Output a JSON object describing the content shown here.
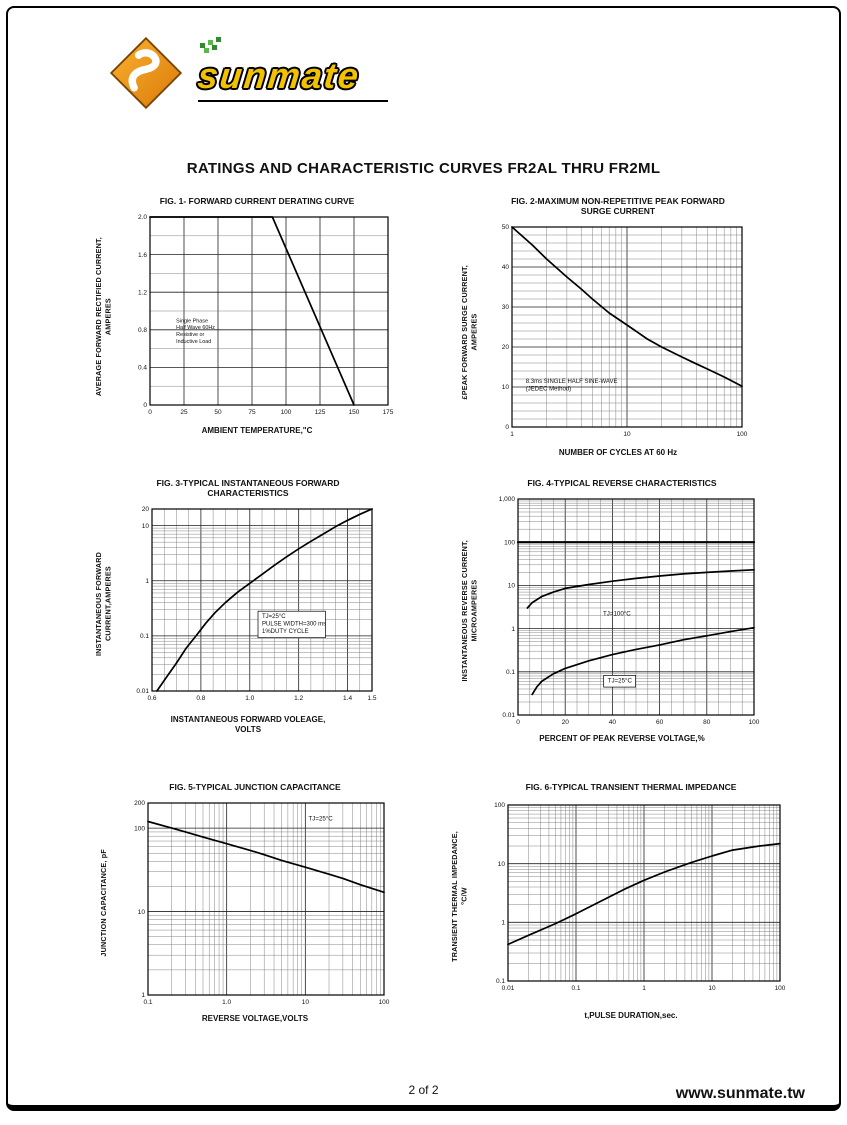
{
  "page": {
    "brand": "SUNMATE",
    "title": "RATINGS AND CHARACTERISTIC CURVES FR2AL THRU FR2ML",
    "footer_page": "2 of 2",
    "footer_site": "www.sunmate.tw"
  },
  "colors": {
    "logo_orange": "#E8891B",
    "logo_yellow": "#F2C100",
    "curve": "#000000"
  },
  "chart_data": [
    {
      "type": "line",
      "title": "FIG. 1- FORWARD CURRENT DERATING CURVE",
      "xlabel": "AMBIENT TEMPERATURE,\"C",
      "ylabel": "AVERAGE FORWARD RECTIFIED CURRENT,\nAMPERES",
      "x": {
        "scale": "linear",
        "min": 0,
        "max": 175,
        "grid_step": 25,
        "ticks": [
          [
            0,
            "0"
          ],
          [
            25,
            "25"
          ],
          [
            50,
            "50"
          ],
          [
            75,
            "75"
          ],
          [
            100,
            "100"
          ],
          [
            125,
            "125"
          ],
          [
            150,
            "150"
          ],
          [
            175,
            "175"
          ]
        ]
      },
      "y": {
        "scale": "linear",
        "min": 0,
        "max": 2,
        "grid_step": 0.2,
        "ticks": [
          [
            0,
            "0"
          ],
          [
            0.4,
            "0.4"
          ],
          [
            0.8,
            "0.8"
          ],
          [
            1.2,
            "1.2"
          ],
          [
            1.6,
            "1.6"
          ],
          [
            2,
            "2.0"
          ]
        ]
      },
      "series": [
        {
          "name": "derating-curve",
          "width": 1.7,
          "points": [
            [
              0,
              2
            ],
            [
              90,
              2
            ],
            [
              150,
              0
            ]
          ]
        }
      ],
      "annotations": [
        {
          "text": "Single Phase\nHalf Wave 60Hz\nResistive or\nInductive Load",
          "rx": 0.11,
          "ry": 0.56,
          "font": 5.4,
          "boxed": false
        }
      ]
    },
    {
      "type": "line",
      "title": "FIG. 2-MAXIMUM NON-REPETITIVE PEAK FORWARD\nSURGE CURRENT",
      "xlabel": "NUMBER OF CYCLES AT 60 Hz",
      "ylabel": "£PEAK  FORWARD SURGE CURRENT,\nAMPERES",
      "x": {
        "scale": "log",
        "min": 1,
        "max": 100,
        "ticks": [
          [
            1,
            "1"
          ],
          [
            10,
            "10"
          ],
          [
            100,
            "100"
          ]
        ]
      },
      "y": {
        "scale": "linear",
        "min": 0,
        "max": 50,
        "grid_step": 2,
        "ticks": [
          [
            0,
            "0"
          ],
          [
            10,
            "10"
          ],
          [
            20,
            "20"
          ],
          [
            30,
            "30"
          ],
          [
            40,
            "40"
          ],
          [
            50,
            "50"
          ]
        ]
      },
      "series": [
        {
          "name": "surge-current-curve",
          "width": 1.7,
          "points": [
            [
              1,
              50
            ],
            [
              1.5,
              45.5
            ],
            [
              2,
              42
            ],
            [
              3,
              37.5
            ],
            [
              4,
              34.5
            ],
            [
              5,
              32
            ],
            [
              7,
              28.5
            ],
            [
              10,
              25.5
            ],
            [
              15,
              22
            ],
            [
              20,
              20
            ],
            [
              30,
              17.5
            ],
            [
              40,
              15.8
            ],
            [
              50,
              14.5
            ],
            [
              70,
              12.5
            ],
            [
              100,
              10.2
            ]
          ]
        }
      ],
      "annotations": [
        {
          "text": "8.3ms SINGLE HALF SINE-WAVE\n(JEDEC Method)",
          "rx": 0.06,
          "ry": 0.78,
          "font": 6,
          "boxed": false
        }
      ]
    },
    {
      "type": "line",
      "title": "FIG. 3-TYPICAL INSTANTANEOUS FORWARD\nCHARACTERISTICS",
      "xlabel": "INSTANTANEOUS FORWARD VOLEAGE,\nVOLTS",
      "ylabel": "INSTANTANEOUS FORWARD\nCURRENT,AMPERES",
      "x": {
        "scale": "linear",
        "min": 0.6,
        "max": 1.5,
        "grid_step": 0.05,
        "ticks": [
          [
            0.6,
            "0.6"
          ],
          [
            0.8,
            "0.8"
          ],
          [
            1,
            "1.0"
          ],
          [
            1.2,
            "1.2"
          ],
          [
            1.4,
            "1.4"
          ],
          [
            1.5,
            "1.5"
          ]
        ]
      },
      "y": {
        "scale": "log",
        "min": 0.01,
        "max": 20,
        "ticks": [
          [
            20,
            "20"
          ],
          [
            10,
            "10"
          ],
          [
            1,
            "1"
          ],
          [
            0.1,
            "0.1"
          ],
          [
            0.01,
            "0.01"
          ]
        ]
      },
      "series": [
        {
          "name": "forward-characteristic-curve",
          "width": 1.7,
          "points": [
            [
              0.62,
              0.01
            ],
            [
              0.66,
              0.018
            ],
            [
              0.7,
              0.032
            ],
            [
              0.74,
              0.06
            ],
            [
              0.78,
              0.1
            ],
            [
              0.82,
              0.17
            ],
            [
              0.86,
              0.27
            ],
            [
              0.9,
              0.4
            ],
            [
              0.95,
              0.62
            ],
            [
              1,
              0.9
            ],
            [
              1.05,
              1.3
            ],
            [
              1.1,
              1.9
            ],
            [
              1.15,
              2.7
            ],
            [
              1.2,
              3.8
            ],
            [
              1.25,
              5.2
            ],
            [
              1.3,
              7
            ],
            [
              1.35,
              9.5
            ],
            [
              1.4,
              12.5
            ],
            [
              1.45,
              16
            ],
            [
              1.5,
              20
            ]
          ]
        }
      ],
      "annotations": [
        {
          "text": "TJ=25°C\nPULSE WIDTH=300 ms\n1%DUTY CYCLE",
          "rx": 0.5,
          "ry": 0.6,
          "font": 6,
          "boxed": true
        }
      ]
    },
    {
      "type": "line",
      "title": "FIG. 4-TYPICAL REVERSE CHARACTERISTICS",
      "xlabel": "PERCENT OF PEAK REVERSE VOLTAGE,%",
      "ylabel": "INSTANTANEOUS REVERSE CURRENT,\nMICROAMPERES",
      "x": {
        "scale": "linear",
        "min": 0,
        "max": 100,
        "grid_step": 5,
        "ticks": [
          [
            0,
            "0"
          ],
          [
            20,
            "20"
          ],
          [
            40,
            "40"
          ],
          [
            60,
            "60"
          ],
          [
            80,
            "80"
          ],
          [
            100,
            "100"
          ]
        ]
      },
      "y": {
        "scale": "log",
        "min": 0.01,
        "max": 1000,
        "ticks": [
          [
            1000,
            "1,000"
          ],
          [
            100,
            "100"
          ],
          [
            10,
            "10"
          ],
          [
            1,
            "1"
          ],
          [
            0.1,
            "0.1"
          ],
          [
            0.01,
            "0.01"
          ]
        ]
      },
      "series": [
        {
          "name": "limit-line",
          "width": 2.2,
          "points": [
            [
              0,
              100
            ],
            [
              100,
              100
            ]
          ]
        },
        {
          "name": "tj-100c-curve",
          "width": 1.7,
          "points": [
            [
              4,
              3
            ],
            [
              6,
              4
            ],
            [
              10,
              5.5
            ],
            [
              15,
              7
            ],
            [
              20,
              8.5
            ],
            [
              30,
              10.5
            ],
            [
              40,
              12.5
            ],
            [
              50,
              14.5
            ],
            [
              60,
              16.5
            ],
            [
              70,
              18.5
            ],
            [
              80,
              20
            ],
            [
              90,
              21.5
            ],
            [
              100,
              23
            ]
          ]
        },
        {
          "name": "tj-25c-curve",
          "width": 1.7,
          "points": [
            [
              6,
              0.03
            ],
            [
              8,
              0.045
            ],
            [
              10,
              0.06
            ],
            [
              15,
              0.09
            ],
            [
              20,
              0.12
            ],
            [
              30,
              0.18
            ],
            [
              40,
              0.25
            ],
            [
              50,
              0.33
            ],
            [
              60,
              0.42
            ],
            [
              70,
              0.55
            ],
            [
              80,
              0.68
            ],
            [
              90,
              0.85
            ],
            [
              100,
              1.05
            ]
          ]
        }
      ],
      "annotations": [
        {
          "text": "TJ=100°C",
          "rx": 0.36,
          "ry": 0.54,
          "font": 6.2,
          "boxed": false
        },
        {
          "text": "TJ=25°C",
          "rx": 0.38,
          "ry": 0.85,
          "font": 6.2,
          "boxed": true
        }
      ]
    },
    {
      "type": "line",
      "title": "FIG. 5-TYPICAL JUNCTION CAPACITANCE",
      "xlabel": "REVERSE VOLTAGE,VOLTS",
      "ylabel": "JUNCTION CAPACITANCE, pF",
      "x": {
        "scale": "log",
        "min": 0.1,
        "max": 100,
        "ticks": [
          [
            0.1,
            "0.1"
          ],
          [
            1,
            "1.0"
          ],
          [
            10,
            "10"
          ],
          [
            100,
            "100"
          ]
        ]
      },
      "y": {
        "scale": "log",
        "min": 1,
        "max": 200,
        "ticks": [
          [
            200,
            "200"
          ],
          [
            100,
            "100"
          ],
          [
            10,
            "10"
          ],
          [
            1,
            "1"
          ]
        ]
      },
      "series": [
        {
          "name": "junction-capacitance-curve",
          "width": 1.7,
          "points": [
            [
              0.1,
              120
            ],
            [
              0.2,
              100
            ],
            [
              0.3,
              90
            ],
            [
              0.5,
              78
            ],
            [
              1,
              65
            ],
            [
              2,
              54
            ],
            [
              3,
              48
            ],
            [
              5,
              41
            ],
            [
              10,
              34
            ],
            [
              20,
              28
            ],
            [
              30,
              25
            ],
            [
              50,
              21
            ],
            [
              100,
              17
            ]
          ]
        }
      ],
      "annotations": [
        {
          "text": "TJ=25°C",
          "rx": 0.68,
          "ry": 0.09,
          "font": 6.2,
          "boxed": false
        }
      ]
    },
    {
      "type": "line",
      "title": "FIG. 6-TYPICAL TRANSIENT THERMAL IMPEDANCE",
      "xlabel": "t,PULSE DURATION,sec.",
      "ylabel": "TRANSIENT THERMAL IMPEDANCE,\n°C/W",
      "x": {
        "scale": "log",
        "min": 0.01,
        "max": 100,
        "ticks": [
          [
            0.01,
            "0.01"
          ],
          [
            0.1,
            "0.1"
          ],
          [
            1,
            "1"
          ],
          [
            10,
            "10"
          ],
          [
            100,
            "100"
          ]
        ]
      },
      "y": {
        "scale": "log",
        "min": 0.1,
        "max": 100,
        "ticks": [
          [
            100,
            "100"
          ],
          [
            10,
            "10"
          ],
          [
            1,
            "1"
          ],
          [
            0.1,
            "0.1"
          ]
        ]
      },
      "series": [
        {
          "name": "thermal-impedance-curve",
          "width": 1.7,
          "points": [
            [
              0.01,
              0.42
            ],
            [
              0.02,
              0.6
            ],
            [
              0.05,
              0.95
            ],
            [
              0.1,
              1.4
            ],
            [
              0.2,
              2.1
            ],
            [
              0.5,
              3.6
            ],
            [
              1,
              5.2
            ],
            [
              2,
              7.2
            ],
            [
              5,
              10.5
            ],
            [
              10,
              13.5
            ],
            [
              20,
              17
            ],
            [
              50,
              20
            ],
            [
              100,
              22
            ]
          ]
        }
      ],
      "annotations": []
    }
  ]
}
